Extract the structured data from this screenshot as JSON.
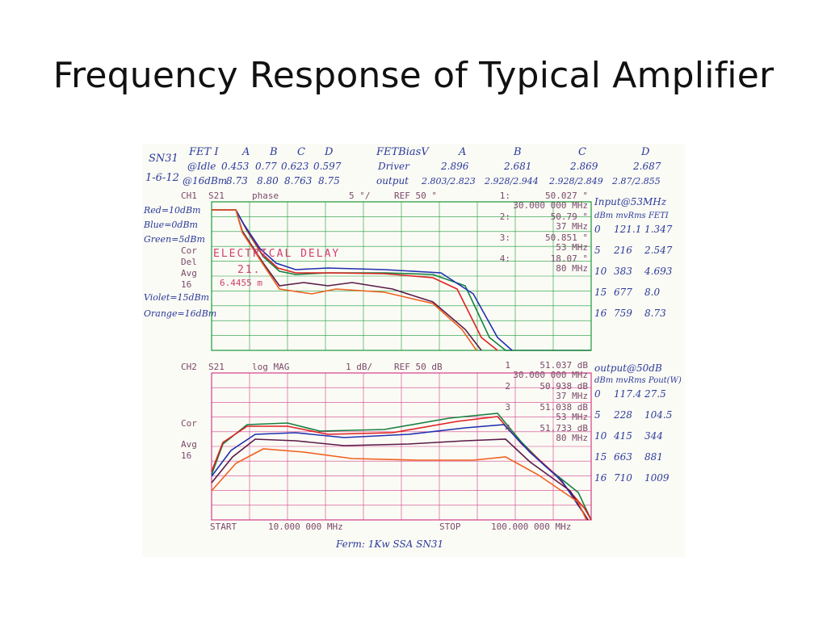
{
  "slide": {
    "title": "Frequency Response of Typical Amplifier"
  },
  "notes": {
    "header_left": [
      "SN31",
      "1-6-12"
    ],
    "fet_table": {
      "head": [
        "FET I",
        "A",
        "B",
        "C",
        "D"
      ],
      "idle": [
        "@Idle",
        "0.453",
        "0.77",
        "0.623",
        "0.597"
      ],
      "p16": [
        "@16dBm",
        "8.73",
        "8.80",
        "8.763",
        "8.75"
      ]
    },
    "bias_table": {
      "head": [
        "FETBiasV",
        "A",
        "B",
        "C",
        "D"
      ],
      "driver": [
        "Driver",
        "2.896",
        "2.681",
        "2.869",
        "2.687"
      ],
      "output": [
        "output",
        "2.803/2.823",
        "2.928/2.944",
        "2.928/2.849",
        "2.87/2.855"
      ]
    },
    "legend": [
      "Red=10dBm",
      "Blue=0dBm",
      "Green=5dBm",
      "Violet=15dBm",
      "Orange=16dBm"
    ],
    "input_table": {
      "title": "Input@53MHz",
      "head": "dBm mvRms FETI",
      "rows": [
        [
          "0",
          "121.1",
          "1.347"
        ],
        [
          "5",
          "216",
          "2.547"
        ],
        [
          "10",
          "383",
          "4.693"
        ],
        [
          "15",
          "677",
          "8.0"
        ],
        [
          "16",
          "759",
          "8.73"
        ]
      ]
    },
    "output_table": {
      "title": "output@50dB",
      "head": "dBm mvRms Pout(W)",
      "rows": [
        [
          "0",
          "117.4",
          "27.5"
        ],
        [
          "5",
          "228",
          "104.5"
        ],
        [
          "10",
          "415",
          "344"
        ],
        [
          "15",
          "663",
          "881"
        ],
        [
          "16",
          "710",
          "1009"
        ]
      ]
    },
    "footer": "Ferm: 1Kw SSA SN31"
  },
  "ch1": {
    "header": {
      "ch": "CH1",
      "param": "S21",
      "fmt": "phase",
      "scale": "5 °/",
      "ref": "REF 50 °"
    },
    "status": [
      "Cor",
      "Del",
      "Avg",
      "16"
    ],
    "delay_label": "ELECTRICAL DELAY",
    "delay_value": "21.",
    "delay_value2": "6.4455 m",
    "markers": [
      {
        "num": "1:",
        "value": "50.027 °",
        "freq": "30.000 000 MHz"
      },
      {
        "num": "2:",
        "value": "50.79 °",
        "freq": "37 MHz"
      },
      {
        "num": "3:",
        "value": "50.851 °",
        "freq": "53 MHz"
      },
      {
        "num": "4:",
        "value": "18.07 °",
        "freq": "80 MHz"
      }
    ]
  },
  "ch2": {
    "header": {
      "ch": "CH2",
      "param": "S21",
      "fmt": "log MAG",
      "scale": "1 dB/",
      "ref": "REF 50 dB"
    },
    "status": [
      "Cor",
      "Avg",
      "16"
    ],
    "markers": [
      {
        "num": "1",
        "value": "51.037 dB",
        "freq": "30.000 000 MHz"
      },
      {
        "num": "2",
        "value": "50.938 dB",
        "freq": "37 MHz"
      },
      {
        "num": "3",
        "value": "51.038 dB",
        "freq": "53 MHz"
      },
      {
        "num": "4",
        "value": "51.733 dB",
        "freq": "80 MHz"
      }
    ],
    "start_label": "START",
    "start_value": "10.000 000 MHz",
    "stop_label": "STOP",
    "stop_value": "100.000 000 MHz"
  },
  "colors": {
    "grid": "#1a9a3a",
    "grid2": "#d0408a",
    "red": "#e02020",
    "blue": "#2030b0",
    "green": "#168040",
    "violet": "#5a1a4a",
    "orange": "#f06020",
    "ink": "#2a3a9a",
    "text": "#7a4a6a"
  }
}
